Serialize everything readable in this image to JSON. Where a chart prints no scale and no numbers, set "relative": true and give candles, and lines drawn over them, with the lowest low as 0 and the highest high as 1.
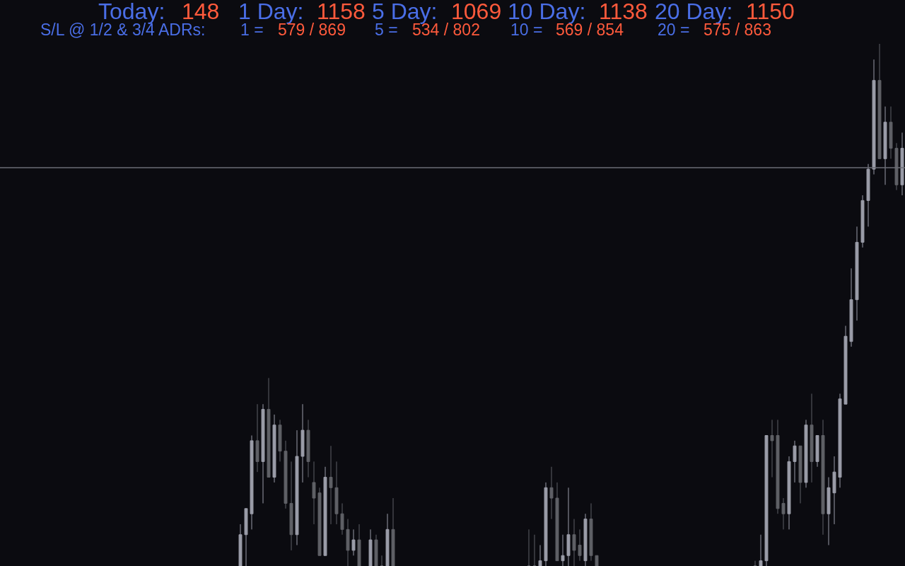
{
  "chart_data": {
    "type": "candlestick",
    "relative": true,
    "legend": false,
    "colors": [
      null,
      null,
      null,
      null,
      null,
      null,
      null,
      null,
      null,
      null,
      null,
      null,
      null,
      null,
      null,
      null,
      null,
      null,
      null,
      null,
      null,
      null,
      null,
      null,
      null,
      null,
      null,
      null,
      null,
      null,
      null,
      null,
      null,
      null,
      null,
      null,
      null,
      null,
      null,
      null,
      null,
      null,
      "#9a9ca8",
      "#9a9ca8",
      "#9a9ca8",
      "#5f6066",
      "#9a9ca8",
      "#5f6066",
      "#9a9ca8",
      "#5f6066",
      "#5f6066",
      "#5f6066",
      "#9a9ca8",
      "#9a9ca8",
      "#5f6066",
      "#5f6066",
      "#5f6066",
      "#9a9ca8",
      "#5f6066",
      "#5f6066",
      "#5f6066",
      "#5f6066",
      "#9a9ca8",
      "#5f6066",
      null,
      "#9a9ca8",
      "#5f6066",
      "#5f6066",
      "#9a9ca8",
      "#5f6066",
      null,
      null,
      null,
      null,
      null,
      null,
      null,
      null,
      null,
      null,
      null,
      null,
      null,
      null,
      null,
      null,
      null,
      null,
      null,
      null,
      null,
      null,
      null,
      "#5f6066",
      "#5f6066",
      "#9a9ca8",
      "#9a9ca8",
      "#5f6066",
      "#5f6066",
      "#9a9ca8",
      "#9a9ca8",
      "#5f6066",
      "#5f6066",
      "#9a9ca8",
      "#5f6066",
      "#5f6066",
      null,
      null,
      null,
      null,
      null,
      null,
      null,
      null,
      null,
      null,
      null,
      null,
      null,
      null,
      null,
      null,
      null,
      null,
      null,
      null,
      null,
      null,
      null,
      null,
      null,
      null,
      null,
      "#5f6066",
      "#9a9ca8",
      "#9a9ca8",
      "#5f6066",
      "#5f6066",
      "#5f6066",
      "#9a9ca8",
      "#9a9ca8",
      "#5f6066",
      "#9a9ca8",
      "#5f6066",
      "#9a9ca8",
      "#5f6066",
      "#9a9ca8",
      "#9a9ca8",
      "#9a9ca8",
      "#9a9ca8",
      "#9a9ca8",
      "#9a9ca8",
      "#9a9ca8",
      "#9a9ca8",
      "#9a9ca8",
      "#5f6066",
      "#9a9ca8",
      "#5f6066",
      "#5f6066",
      "#9a9ca8"
    ],
    "annotations": [
      "Today:",
      "148",
      "1 Day:",
      "1158",
      "5 Day:",
      "1069",
      "10 Day:",
      "1138",
      "20 Day:",
      "1150",
      "S/L @ 1/2 & 3/4 ADRs:",
      "1 =",
      "579 / 869",
      "5 =",
      "534 / 802",
      "10 =",
      "569 / 854",
      "20 =",
      "575 / 863"
    ],
    "ref_lines": [
      {
        "axis": "y",
        "value": 0.763,
        "color": "#6b6d75"
      }
    ],
    "categories": [
      null,
      null,
      null,
      null,
      null,
      null,
      null,
      null,
      null,
      null,
      null,
      null,
      null,
      null,
      null,
      null,
      null,
      null,
      null,
      null,
      null,
      null,
      null,
      null,
      null,
      null,
      null,
      null,
      null,
      null,
      null,
      null,
      null,
      null,
      null,
      null,
      null,
      null,
      null,
      null,
      null,
      null,
      null,
      null,
      null,
      null,
      null,
      null,
      null,
      null,
      null,
      null,
      null,
      null,
      null,
      null,
      null,
      null,
      null,
      null,
      null,
      null,
      null,
      null,
      null,
      null,
      null,
      null,
      null,
      null,
      null,
      null,
      null,
      null,
      null,
      null,
      null,
      null,
      null,
      null,
      null,
      null,
      null,
      null,
      null,
      null,
      null,
      null,
      null,
      null,
      null,
      null,
      null,
      null,
      null,
      null,
      null,
      null,
      null,
      null,
      null,
      null,
      null,
      null,
      null,
      null,
      null,
      null,
      null,
      null,
      null,
      null,
      null,
      null,
      null,
      null,
      null,
      null,
      null,
      null,
      null,
      null,
      null,
      null,
      null,
      null,
      null,
      null,
      null,
      null,
      null,
      null,
      null,
      null,
      null,
      null,
      null,
      null,
      null,
      null,
      null,
      null,
      null,
      null,
      null,
      null,
      null,
      null,
      null,
      null,
      null,
      null,
      null,
      null,
      null,
      null,
      null,
      null,
      null,
      null
    ],
    "ohlc": [
      null,
      null,
      null,
      null,
      null,
      null,
      null,
      null,
      null,
      null,
      null,
      null,
      null,
      null,
      null,
      null,
      null,
      null,
      null,
      null,
      null,
      null,
      null,
      null,
      null,
      null,
      null,
      null,
      null,
      null,
      null,
      null,
      null,
      null,
      null,
      null,
      null,
      null,
      null,
      null,
      null,
      null,
      [
        0,
        0.08,
        0,
        0.06
      ],
      [
        0.06,
        0.11,
        0,
        0.11
      ],
      [
        0.1,
        0.25,
        0.07,
        0.24
      ],
      [
        0.24,
        0.31,
        0.18,
        0.2
      ],
      [
        0.2,
        0.31,
        0.12,
        0.3
      ],
      [
        0.3,
        0.36,
        0.17,
        0.17
      ],
      [
        0.17,
        0.29,
        0.16,
        0.27
      ],
      [
        0.27,
        0.28,
        0.2,
        0.22
      ],
      [
        0.22,
        0.24,
        0.11,
        0.12
      ],
      [
        0.12,
        0.2,
        0.03,
        0.06
      ],
      [
        0.06,
        0.26,
        0.04,
        0.21
      ],
      [
        0.21,
        0.31,
        0.16,
        0.26
      ],
      [
        0.26,
        0.28,
        0.17,
        0.2
      ],
      [
        0.16,
        0.2,
        0.08,
        0.13
      ],
      [
        0.14,
        0.15,
        0.02,
        0.02
      ],
      [
        0.02,
        0.19,
        0.02,
        0.17
      ],
      [
        0.17,
        0.23,
        0.08,
        0.15
      ],
      [
        0.15,
        0.2,
        0.08,
        0.1
      ],
      [
        0.1,
        0.12,
        0.06,
        0.07
      ],
      [
        0.07,
        0.09,
        0,
        0.03
      ],
      [
        0.03,
        0.07,
        0.02,
        0.05
      ],
      [
        0.05,
        0.08,
        0,
        0
      ],
      null,
      [
        0,
        0.07,
        0,
        0.05
      ],
      [
        0.05,
        0.06,
        0,
        0
      ],
      [
        0,
        0.02,
        0,
        0
      ],
      [
        0,
        0.1,
        0,
        0.07
      ],
      [
        0.07,
        0.13,
        0,
        0
      ],
      null,
      null,
      null,
      null,
      null,
      null,
      null,
      null,
      null,
      null,
      null,
      null,
      null,
      null,
      null,
      null,
      null,
      null,
      null,
      null,
      null,
      null,
      null,
      [
        0,
        0.07,
        0,
        0
      ],
      [
        0,
        0.06,
        0,
        0
      ],
      [
        0,
        0.04,
        0,
        0.01
      ],
      [
        0.01,
        0.16,
        0,
        0.15
      ],
      [
        0.15,
        0.19,
        0.09,
        0.13
      ],
      [
        0.13,
        0.16,
        0.01,
        0.01
      ],
      [
        0.01,
        0.06,
        0,
        0.02
      ],
      [
        0.02,
        0.15,
        0,
        0.06
      ],
      [
        0.06,
        0.09,
        0,
        0.03
      ],
      [
        0.04,
        0.07,
        0.01,
        0.02
      ],
      [
        0.01,
        0.1,
        0,
        0.09
      ],
      [
        0.09,
        0.12,
        0.01,
        0.02
      ],
      [
        0.02,
        0.02,
        0,
        0
      ],
      null,
      null,
      null,
      null,
      null,
      null,
      null,
      null,
      null,
      null,
      null,
      null,
      null,
      null,
      null,
      null,
      null,
      null,
      null,
      null,
      null,
      null,
      null,
      null,
      null,
      null,
      null,
      [
        0,
        0.01,
        0,
        0
      ],
      [
        0,
        0.06,
        0,
        0.01
      ],
      [
        0.01,
        0.25,
        0,
        0.25
      ],
      [
        0.25,
        0.28,
        0.17,
        0.24
      ],
      [
        0.25,
        0.28,
        0.1,
        0.11
      ],
      [
        0.12,
        0.13,
        0.07,
        0.1
      ],
      [
        0.1,
        0.21,
        0.07,
        0.2
      ],
      [
        0.2,
        0.24,
        0.16,
        0.23
      ],
      [
        0.23,
        0.23,
        0.12,
        0.16
      ],
      [
        0.16,
        0.28,
        0.15,
        0.27
      ],
      [
        0.27,
        0.33,
        0.16,
        0.2
      ],
      [
        0.2,
        0.25,
        0.19,
        0.25
      ],
      [
        0.25,
        0.28,
        0.06,
        0.1
      ],
      [
        0.1,
        0.17,
        0.04,
        0.15
      ],
      [
        0.14,
        0.21,
        0.08,
        0.18
      ],
      [
        0.17,
        0.33,
        0.15,
        0.32
      ],
      [
        0.31,
        0.46,
        0.31,
        0.44
      ],
      [
        0.43,
        0.57,
        0.42,
        0.51
      ],
      [
        0.51,
        0.65,
        0.47,
        0.62
      ],
      [
        0.62,
        0.71,
        0.61,
        0.7
      ],
      [
        0.7,
        0.77,
        0.65,
        0.76
      ],
      [
        0.76,
        0.97,
        0.75,
        0.93
      ],
      [
        0.93,
        1.0,
        0.78,
        0.78
      ],
      [
        0.78,
        0.88,
        0.73,
        0.85
      ],
      [
        0.85,
        0.88,
        0.78,
        0.8
      ],
      [
        0.8,
        0.81,
        0.72,
        0.73
      ],
      [
        0.73,
        0.83,
        0.71,
        0.8
      ]
    ]
  }
}
